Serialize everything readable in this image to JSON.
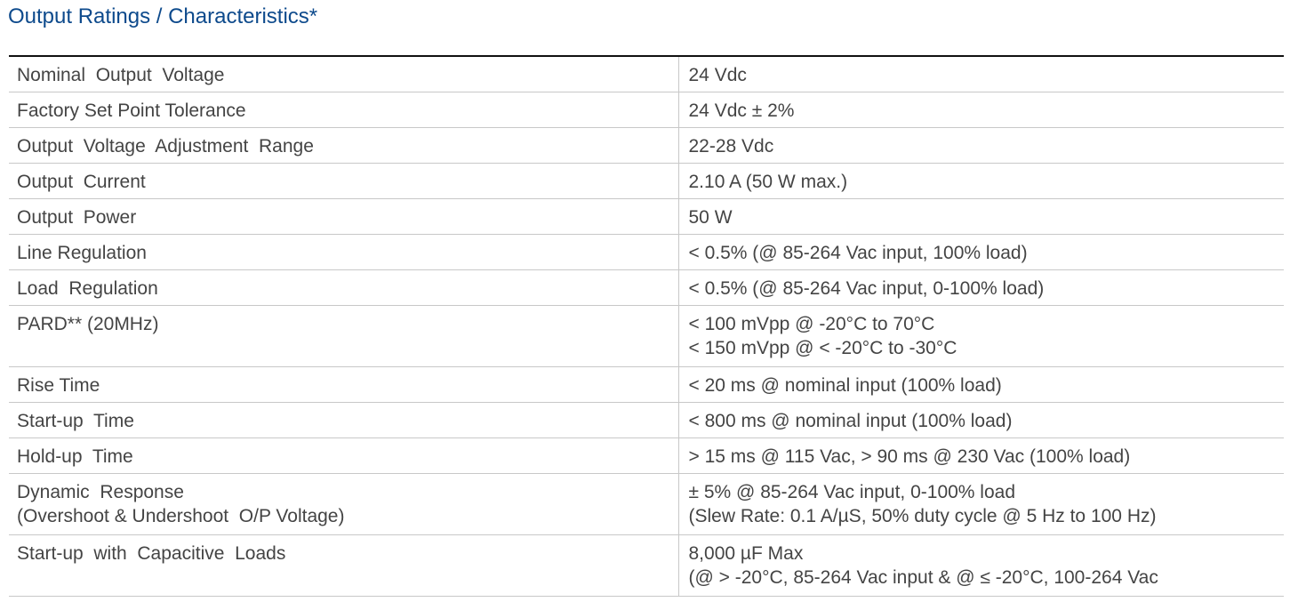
{
  "title": "Output Ratings / Characteristics*",
  "rows": [
    {
      "label": [
        "Nominal  Output  Voltage"
      ],
      "value": [
        "24 Vdc"
      ]
    },
    {
      "label": [
        "Factory Set Point Tolerance"
      ],
      "value": [
        "24 Vdc ± 2%"
      ]
    },
    {
      "label": [
        "Output  Voltage  Adjustment  Range"
      ],
      "value": [
        "22-28 Vdc"
      ]
    },
    {
      "label": [
        "Output  Current"
      ],
      "value": [
        "2.10 A (50 W max.)"
      ]
    },
    {
      "label": [
        "Output  Power"
      ],
      "value": [
        "50 W"
      ]
    },
    {
      "label": [
        "Line Regulation"
      ],
      "value": [
        "< 0.5% (@ 85-264 Vac input, 100% load)"
      ]
    },
    {
      "label": [
        "Load  Regulation"
      ],
      "value": [
        "< 0.5% (@ 85-264 Vac input, 0-100% load)"
      ]
    },
    {
      "label": [
        "PARD** (20MHz)"
      ],
      "value": [
        "< 100 mVpp @ -20°C to 70°C",
        "< 150 mVpp @ < -20°C to -30°C"
      ]
    },
    {
      "label": [
        "Rise Time"
      ],
      "value": [
        "< 20 ms @ nominal input (100% load)"
      ]
    },
    {
      "label": [
        "Start-up  Time"
      ],
      "value": [
        "< 800 ms @ nominal input (100% load)"
      ]
    },
    {
      "label": [
        "Hold-up  Time"
      ],
      "value": [
        "> 15 ms @ 115 Vac, > 90 ms @ 230 Vac (100% load)"
      ]
    },
    {
      "label": [
        "Dynamic  Response",
        "(Overshoot & Undershoot  O/P Voltage)"
      ],
      "value": [
        "± 5% @ 85-264 Vac input, 0-100% load",
        "(Slew Rate: 0.1 A/µS, 50% duty cycle @ 5 Hz to 100 Hz)"
      ]
    },
    {
      "label": [
        "Start-up  with  Capacitive  Loads"
      ],
      "value": [
        "8,000 µF Max",
        "(@ > -20°C, 85-264 Vac input & @ ≤ -20°C, 100-264 Vac"
      ]
    }
  ]
}
